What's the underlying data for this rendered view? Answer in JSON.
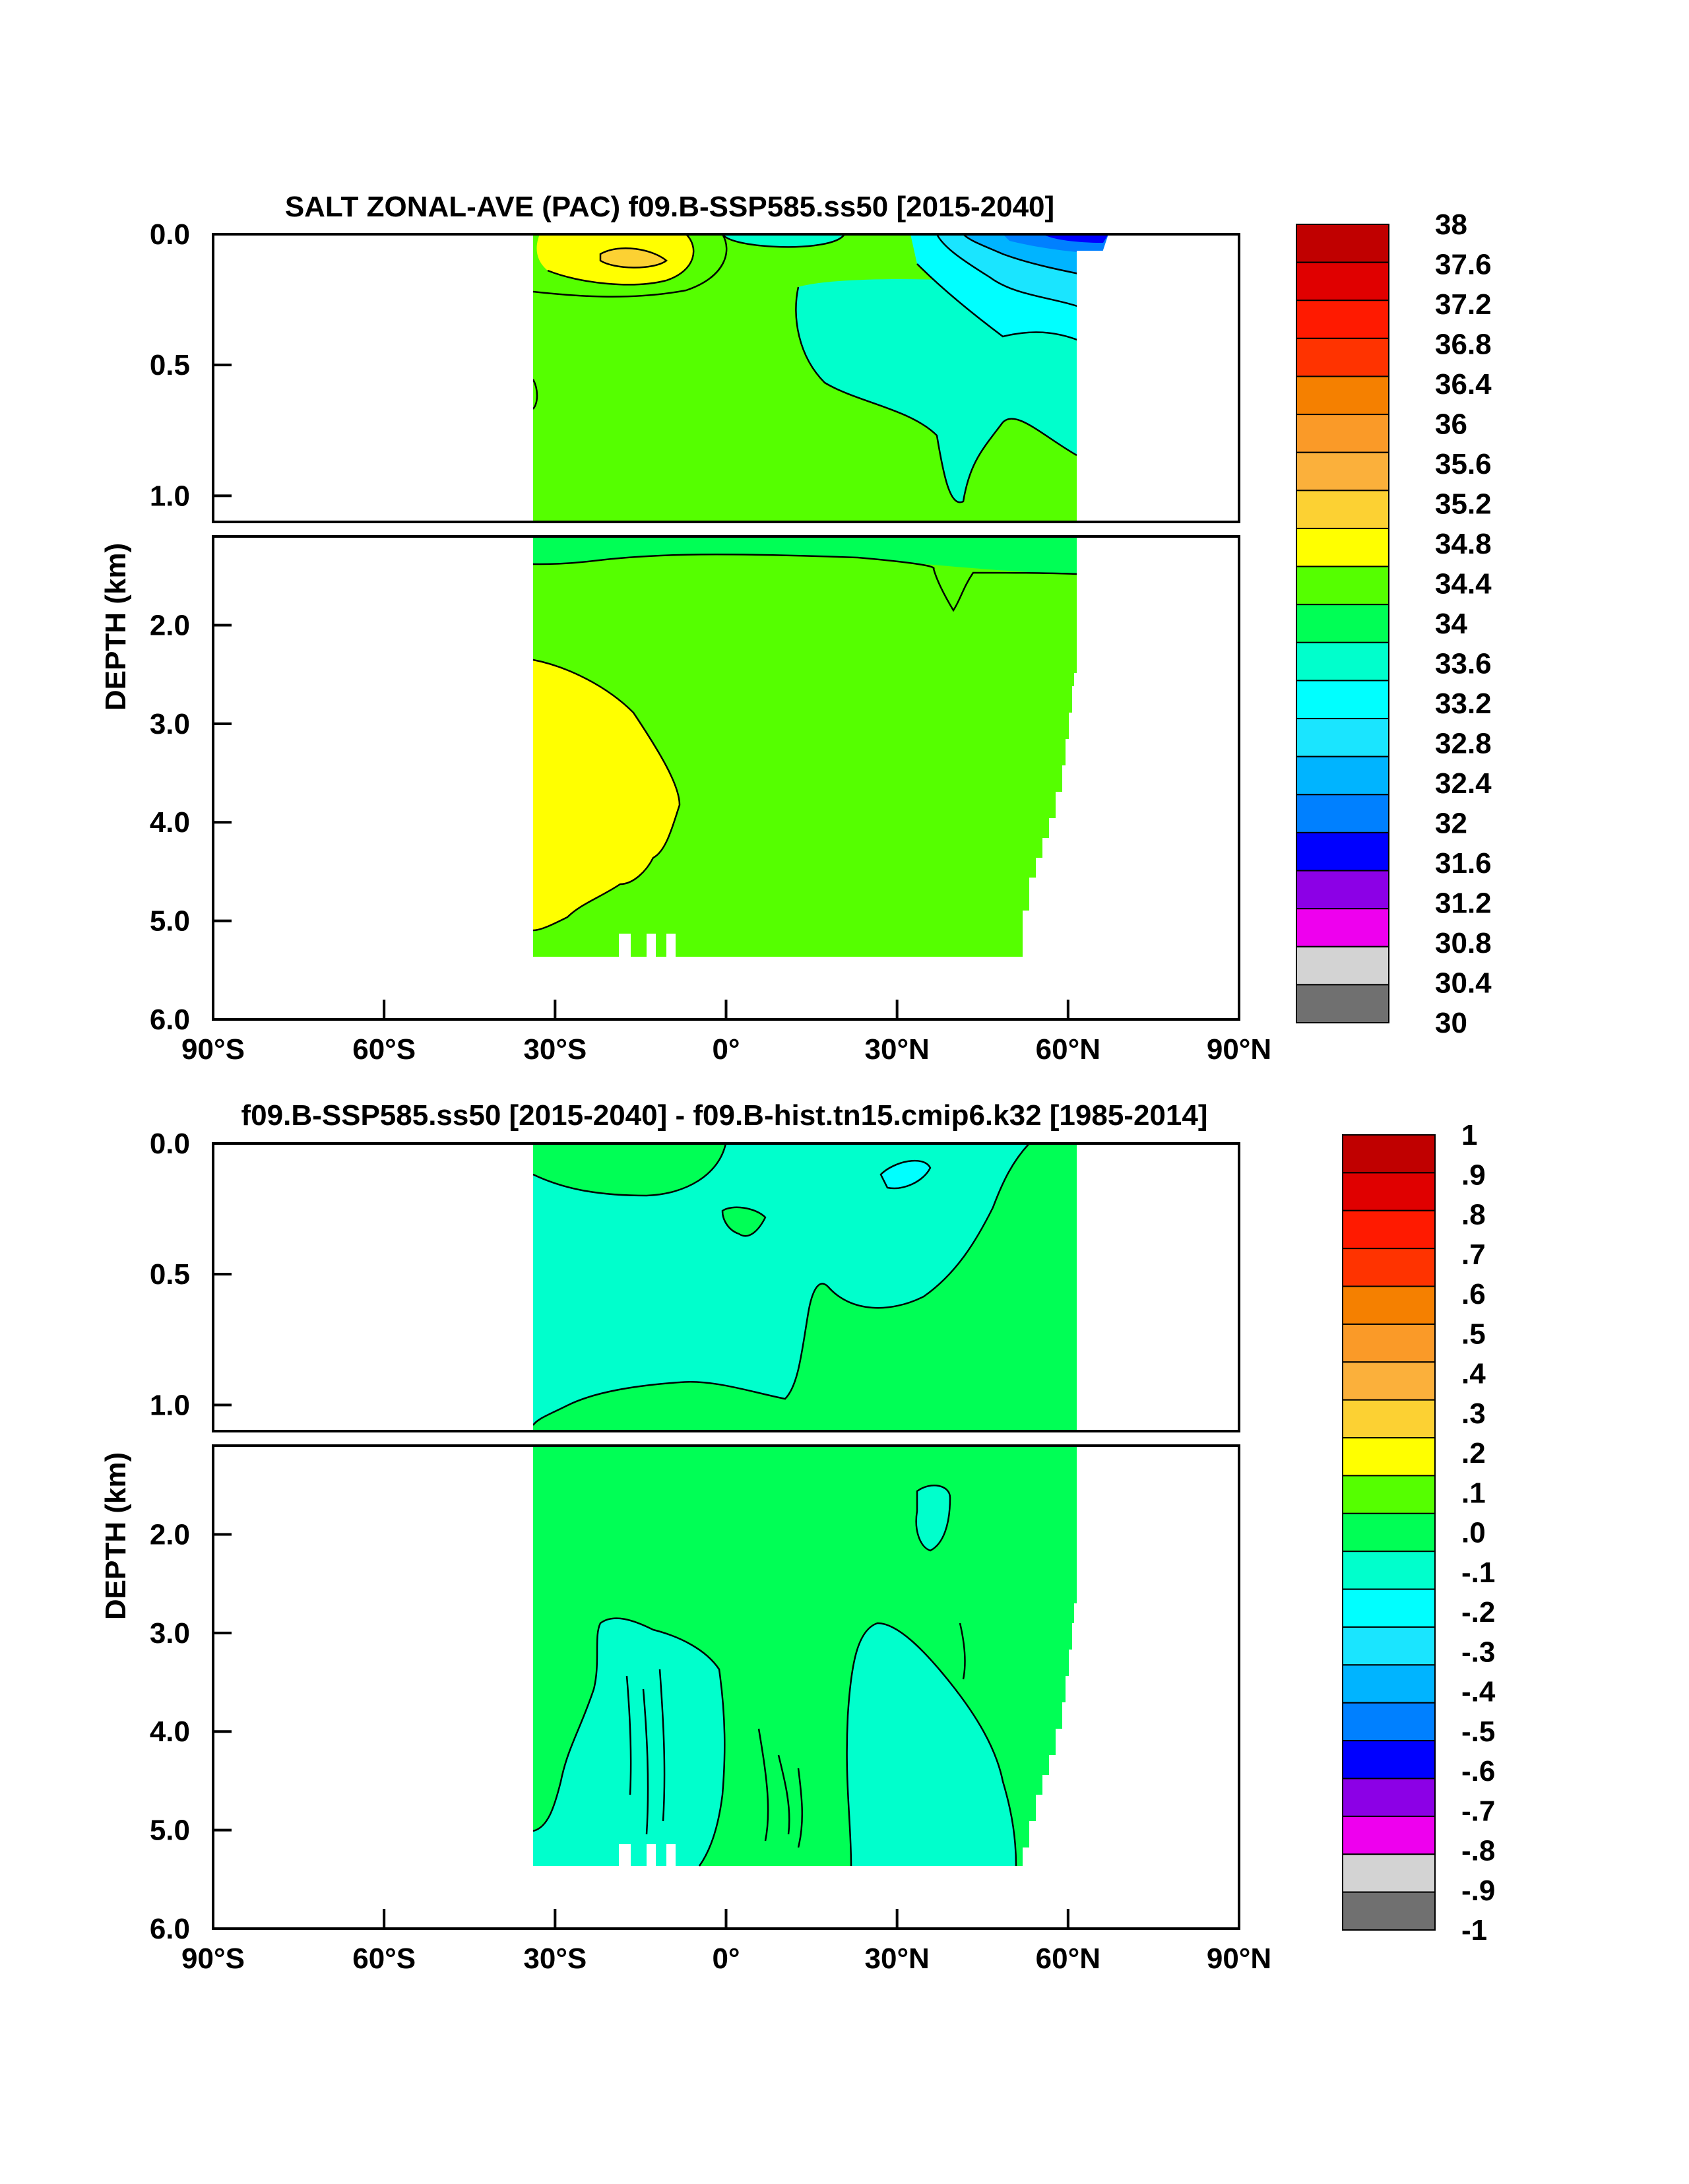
{
  "chart_data": [
    {
      "type": "contour",
      "title": "SALT ZONAL-AVE (PAC) f09.B-SSP585.ss50 [2015-2040]",
      "ylabel": "DEPTH (km)",
      "xlabel": "",
      "x_ticks": [
        "90°S",
        "60°S",
        "30°S",
        "0°",
        "30°N",
        "60°N",
        "90°N"
      ],
      "y_ticks_upper": [
        "0.0",
        "0.5",
        "1.0"
      ],
      "y_ticks_lower": [
        "2.0",
        "3.0",
        "4.0",
        "5.0",
        "6.0"
      ],
      "xlim": [
        -90,
        90
      ],
      "ylim_upper_km": [
        0,
        1.1
      ],
      "ylim_lower_km": [
        1.1,
        6.0
      ],
      "data_extent_lat": [
        -34,
        62
      ],
      "colorbar_labels": [
        "38",
        "37.6",
        "37.2",
        "36.8",
        "36.4",
        "36",
        "35.6",
        "35.2",
        "34.8",
        "34.4",
        "34",
        "33.6",
        "33.2",
        "32.8",
        "32.4",
        "32",
        "31.6",
        "31.2",
        "30.8",
        "30.4",
        "30"
      ],
      "colorbar_colors": [
        "#c00000",
        "#e00000",
        "#ff1a00",
        "#ff3300",
        "#f58000",
        "#fa9a28",
        "#fbb03b",
        "#fcd133",
        "#ffff00",
        "#55ff00",
        "#00ff55",
        "#00ffcc",
        "#00ffff",
        "#1ae5ff",
        "#00b4ff",
        "#0080ff",
        "#0000ff",
        "#8c00e6",
        "#ee00ee",
        "#d3d3d3",
        "#707070"
      ],
      "regions": [
        {
          "level": "34.4-34.8",
          "description": "dominant fill, upper and deep ocean"
        },
        {
          "level": "34.8-35.2",
          "description": "subtropical South Pacific surface maximum and deep southern water below 2.4 km"
        },
        {
          "level": "33.6-34.0",
          "description": "North Pacific intermediate water 0.1-1.0 km"
        },
        {
          "level": "32.0-33.2",
          "description": "subpolar North Pacific surface"
        }
      ]
    },
    {
      "type": "contour",
      "title": "f09.B-SSP585.ss50 [2015-2040] - f09.B-hist.tn15.cmip6.k32 [1985-2014]",
      "ylabel": "DEPTH (km)",
      "xlabel": "",
      "x_ticks": [
        "90°S",
        "60°S",
        "30°S",
        "0°",
        "30°N",
        "60°N",
        "90°N"
      ],
      "y_ticks_upper": [
        "0.0",
        "0.5",
        "1.0"
      ],
      "y_ticks_lower": [
        "2.0",
        "3.0",
        "4.0",
        "5.0",
        "6.0"
      ],
      "xlim": [
        -90,
        90
      ],
      "ylim_upper_km": [
        0,
        1.1
      ],
      "ylim_lower_km": [
        1.1,
        6.0
      ],
      "data_extent_lat": [
        -34,
        62
      ],
      "colorbar_labels": [
        "1",
        ".9",
        ".8",
        ".7",
        ".6",
        ".5",
        ".4",
        ".3",
        ".2",
        ".1",
        ".0",
        "-.1",
        "-.2",
        "-.3",
        "-.4",
        "-.5",
        "-.6",
        "-.7",
        "-.8",
        "-.9",
        "-1"
      ],
      "colorbar_colors": [
        "#c00000",
        "#e00000",
        "#ff1a00",
        "#ff3300",
        "#f58000",
        "#fa9a28",
        "#fbb03b",
        "#fcd133",
        "#ffff00",
        "#55ff00",
        "#00ff55",
        "#00ffcc",
        "#00ffff",
        "#1ae5ff",
        "#00b4ff",
        "#0080ff",
        "#0000ff",
        "#8c00e6",
        "#ee00ee",
        "#d3d3d3",
        "#707070"
      ],
      "regions": [
        {
          "level": "0.0-0.1",
          "description": "dominant fill, deep ocean and North Pacific upper layer"
        },
        {
          "level": "-0.1-0.0",
          "description": "South/tropical Pacific upper 1 km and deep patches 3-5.4 km"
        }
      ]
    }
  ]
}
